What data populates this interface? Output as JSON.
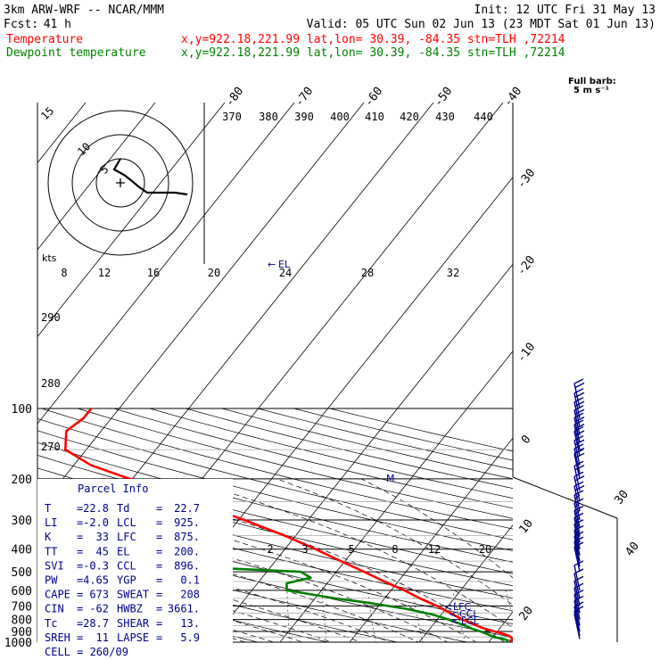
{
  "header": {
    "model": "3km ARW-WRF -- NCAR/MMM",
    "init": "Init: 12 UTC Fri 31 May 13",
    "fcst_label": "Fcst:",
    "fcst_value": "41 h",
    "valid": "Valid: 05 UTC Sun 02 Jun 13 (23 MDT Sat 01 Jun 13)",
    "temp_label": "Temperature",
    "temp_info": "x,y=922.18,221.99   lat,lon= 30.39, -84.35   stn=TLH ,72214",
    "dew_label": "Dewpoint temperature",
    "dew_info": "x,y=922.18,221.99   lat,lon= 30.39, -84.35   stn=TLH ,72214",
    "temp_color": "#ff0000",
    "dew_color": "#008000"
  },
  "barb_legend": {
    "line1": "Full barb:",
    "line2": "5 m s⁻¹"
  },
  "parcel_info": {
    "title": "Parcel Info",
    "rows": [
      {
        "k1": "T",
        "v1": "22.8",
        "k2": "Td",
        "v2": "22.7"
      },
      {
        "k1": "LI",
        "v1": "-2.0",
        "k2": "LCL",
        "v2": "925."
      },
      {
        "k1": "K",
        "v1": "33",
        "k2": "LFC",
        "v2": "875."
      },
      {
        "k1": "TT",
        "v1": "45",
        "k2": "EL",
        "v2": "200."
      },
      {
        "k1": "SVI",
        "v1": "-0.3",
        "k2": "CCL",
        "v2": "896."
      },
      {
        "k1": "PW",
        "v1": "4.65",
        "k2": "YGP",
        "v2": "0.1"
      },
      {
        "k1": "CAPE",
        "v1": "673",
        "k2": "SWEAT",
        "v2": "208"
      },
      {
        "k1": "CIN",
        "v1": "-62",
        "k2": "HWBZ",
        "v2": "3661."
      },
      {
        "k1": "Tc",
        "v1": "28.7",
        "k2": "SHEAR",
        "v2": "13."
      },
      {
        "k1": "SREH",
        "v1": "11",
        "k2": "LAPSE",
        "v2": "5.9"
      }
    ],
    "cell": "CELL = 260/09"
  },
  "hodograph": {
    "kts_label": "kts",
    "ring_labels": [
      "5",
      "10",
      "15"
    ]
  },
  "chart_data": {
    "type": "line",
    "title": "",
    "xlabel": "",
    "ylabel": "",
    "pressure_levels": [
      100,
      200,
      300,
      400,
      500,
      600,
      700,
      800,
      900,
      1000
    ],
    "isotherm_labels": [
      -80,
      -70,
      -60,
      -50,
      -40,
      -30,
      -20,
      -10,
      0,
      10,
      20,
      30,
      40
    ],
    "theta_labels": [
      370,
      380,
      390,
      400,
      410,
      420,
      430,
      440
    ],
    "theta_labels_left": [
      290,
      280,
      270
    ],
    "mixing_ratio_labels_upper": [
      8,
      12,
      16,
      20,
      24,
      28,
      32
    ],
    "mixing_ratio_labels_lower": [
      2,
      3,
      5,
      8,
      12,
      20
    ],
    "level_markers": [
      "LFC",
      "CCL",
      "LCL"
    ],
    "el_marker": "EL",
    "series": [
      {
        "name": "Temperature",
        "color": "#ff0000",
        "points": [
          [
            987,
            22.8
          ],
          [
            975,
            23.5
          ],
          [
            962,
            22.9
          ],
          [
            942,
            22.3
          ],
          [
            925,
            21.4
          ],
          [
            900,
            19.6
          ],
          [
            875,
            17.8
          ],
          [
            850,
            16.4
          ],
          [
            800,
            13.6
          ],
          [
            750,
            11.1
          ],
          [
            700,
            8.4
          ],
          [
            650,
            5.1
          ],
          [
            600,
            1.9
          ],
          [
            550,
            -2.0
          ],
          [
            500,
            -6.0
          ],
          [
            450,
            -10.6
          ],
          [
            400,
            -15.6
          ],
          [
            350,
            -21.6
          ],
          [
            300,
            -29.2
          ],
          [
            250,
            -38.8
          ],
          [
            200,
            -50.4
          ],
          [
            175,
            -57.5
          ],
          [
            150,
            -63.0
          ],
          [
            125,
            -65.0
          ],
          [
            110,
            -64.0
          ],
          [
            100,
            -64.0
          ]
        ]
      },
      {
        "name": "Dewpoint temperature",
        "color": "#008000",
        "points": [
          [
            987,
            22.7
          ],
          [
            970,
            21.8
          ],
          [
            950,
            20.1
          ],
          [
            925,
            18.9
          ],
          [
            900,
            17.6
          ],
          [
            875,
            16.0
          ],
          [
            850,
            14.7
          ],
          [
            800,
            11.6
          ],
          [
            760,
            8.6
          ],
          [
            720,
            4.3
          ],
          [
            680,
            -1.6
          ],
          [
            650,
            -7.0
          ],
          [
            600,
            -15.0
          ],
          [
            560,
            -15.8
          ],
          [
            530,
            -13.0
          ],
          [
            500,
            -15.1
          ],
          [
            480,
            -28.7
          ],
          [
            465,
            -41.6
          ],
          [
            430,
            -42.0
          ],
          [
            400,
            -44.4
          ],
          [
            360,
            -52.1
          ],
          [
            320,
            -57.7
          ],
          [
            295,
            -62.3
          ],
          [
            265,
            -60.0
          ],
          [
            240,
            -61.0
          ],
          [
            218,
            -61.5
          ],
          [
            205,
            -74.2
          ],
          [
            170,
            -79.5
          ],
          [
            145,
            -80.5
          ],
          [
            120,
            -82.0
          ],
          [
            100,
            -82.0
          ]
        ]
      }
    ],
    "wind_barbs": [
      {
        "p": 970,
        "dir": 180,
        "spd": 5
      },
      {
        "p": 940,
        "dir": 200,
        "spd": 8
      },
      {
        "p": 900,
        "dir": 220,
        "spd": 10
      },
      {
        "p": 850,
        "dir": 230,
        "spd": 10
      },
      {
        "p": 800,
        "dir": 240,
        "spd": 8
      },
      {
        "p": 750,
        "dir": 250,
        "spd": 10
      },
      {
        "p": 700,
        "dir": 250,
        "spd": 10
      },
      {
        "p": 650,
        "dir": 255,
        "spd": 10
      },
      {
        "p": 600,
        "dir": 260,
        "spd": 10
      },
      {
        "p": 500,
        "dir": 265,
        "spd": 15
      },
      {
        "p": 475,
        "dir": 265,
        "spd": 15
      },
      {
        "p": 450,
        "dir": 265,
        "spd": 15
      },
      {
        "p": 425,
        "dir": 265,
        "spd": 15
      },
      {
        "p": 400,
        "dir": 265,
        "spd": 15
      },
      {
        "p": 375,
        "dir": 265,
        "spd": 15
      },
      {
        "p": 350,
        "dir": 265,
        "spd": 15
      },
      {
        "p": 325,
        "dir": 265,
        "spd": 15
      },
      {
        "p": 300,
        "dir": 265,
        "spd": 15
      },
      {
        "p": 275,
        "dir": 265,
        "spd": 20
      },
      {
        "p": 250,
        "dir": 265,
        "spd": 20
      },
      {
        "p": 225,
        "dir": 265,
        "spd": 20
      },
      {
        "p": 200,
        "dir": 265,
        "spd": 20
      },
      {
        "p": 190,
        "dir": 265,
        "spd": 20
      },
      {
        "p": 175,
        "dir": 265,
        "spd": 20
      },
      {
        "p": 160,
        "dir": 265,
        "spd": 20
      },
      {
        "p": 150,
        "dir": 265,
        "spd": 20
      },
      {
        "p": 140,
        "dir": 265,
        "spd": 20
      },
      {
        "p": 130,
        "dir": 265,
        "spd": 20
      },
      {
        "p": 120,
        "dir": 265,
        "spd": 20
      },
      {
        "p": 110,
        "dir": 265,
        "spd": 20
      },
      {
        "p": 100,
        "dir": 265,
        "spd": 20
      }
    ]
  }
}
